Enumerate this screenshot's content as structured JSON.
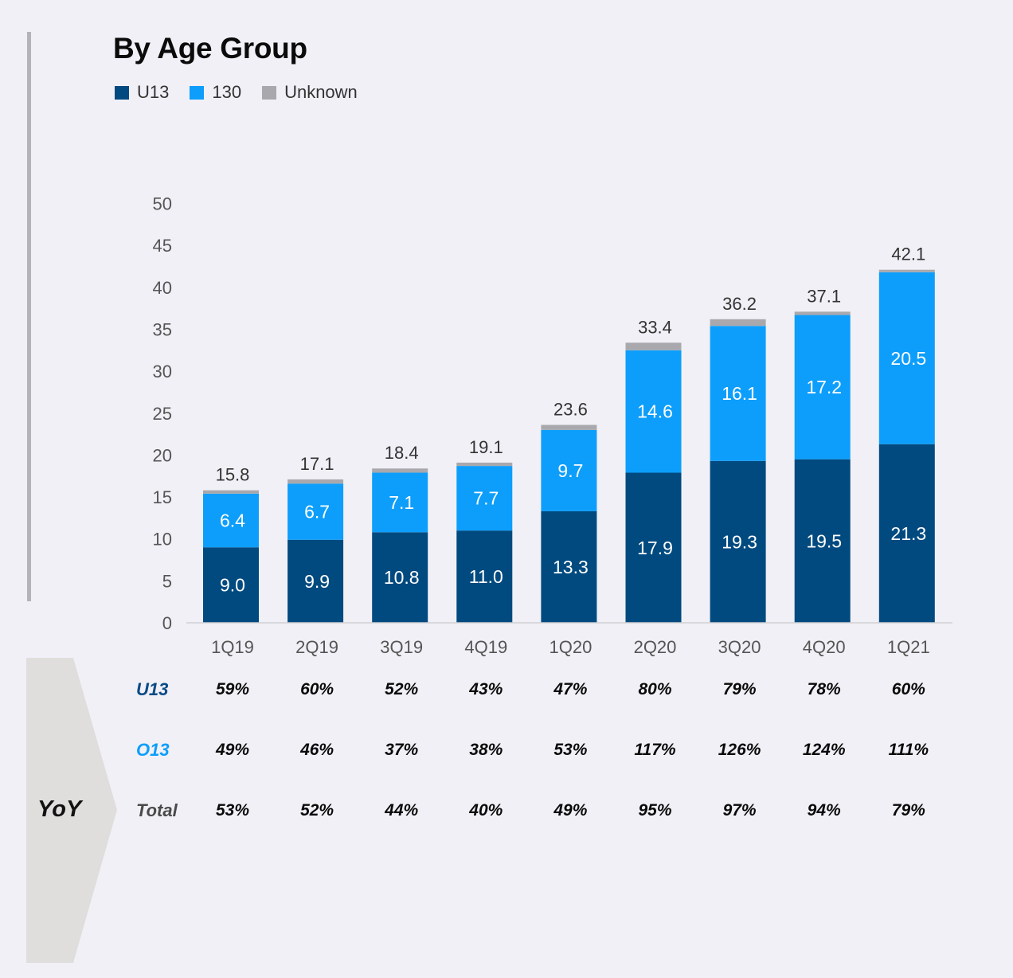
{
  "title": "By Age Group",
  "legend": [
    {
      "label": "U13",
      "color": "#004a7f"
    },
    {
      "label": "130",
      "color": "#0d9efb"
    },
    {
      "label": "Unknown",
      "color": "#a9a9ad"
    }
  ],
  "chart_data": {
    "type": "bar",
    "stacked": true,
    "title": "By Age Group",
    "categories": [
      "1Q19",
      "2Q19",
      "3Q19",
      "4Q19",
      "1Q20",
      "2Q20",
      "3Q20",
      "4Q20",
      "1Q21"
    ],
    "series": [
      {
        "name": "U13",
        "color": "#004a7f",
        "values": [
          9.0,
          9.9,
          10.8,
          11.0,
          13.3,
          17.9,
          19.3,
          19.5,
          21.3
        ],
        "labels": [
          "9.0",
          "9.9",
          "10.8",
          "11.0",
          "13.3",
          "17.9",
          "19.3",
          "19.5",
          "21.3"
        ]
      },
      {
        "name": "130",
        "color": "#0d9efb",
        "values": [
          6.4,
          6.7,
          7.1,
          7.7,
          9.7,
          14.6,
          16.1,
          17.2,
          20.5
        ],
        "labels": [
          "6.4",
          "6.7",
          "7.1",
          "7.7",
          "9.7",
          "14.6",
          "16.1",
          "17.2",
          "20.5"
        ]
      },
      {
        "name": "Unknown",
        "color": "#a9a9ad",
        "values": [
          0.4,
          0.5,
          0.5,
          0.4,
          0.6,
          0.9,
          0.8,
          0.4,
          0.3
        ]
      }
    ],
    "totals": [
      "15.8",
      "17.1",
      "18.4",
      "19.1",
      "23.6",
      "33.4",
      "36.2",
      "37.1",
      "42.1"
    ],
    "total_values": [
      15.8,
      17.1,
      18.4,
      19.1,
      23.6,
      33.4,
      36.2,
      37.1,
      42.1
    ],
    "ylim": [
      0,
      50
    ],
    "yticks": [
      "0",
      "5",
      "10",
      "15",
      "20",
      "25",
      "30",
      "35",
      "40",
      "45",
      "50"
    ],
    "ytick_values": [
      0,
      5,
      10,
      15,
      20,
      25,
      30,
      35,
      40,
      45,
      50
    ],
    "grid": false,
    "legend_position": "top-left"
  },
  "yoy": {
    "title": "YoY",
    "rows": [
      {
        "label": "U13",
        "color": "#0a4b86",
        "values": [
          "59%",
          "60%",
          "52%",
          "43%",
          "47%",
          "80%",
          "79%",
          "78%",
          "60%"
        ]
      },
      {
        "label": "O13",
        "color": "#0d9efb",
        "values": [
          "49%",
          "46%",
          "37%",
          "38%",
          "53%",
          "117%",
          "126%",
          "124%",
          "111%"
        ]
      },
      {
        "label": "Total",
        "color": "#4a4a4a",
        "values": [
          "53%",
          "52%",
          "44%",
          "40%",
          "49%",
          "95%",
          "97%",
          "94%",
          "79%"
        ]
      }
    ]
  }
}
